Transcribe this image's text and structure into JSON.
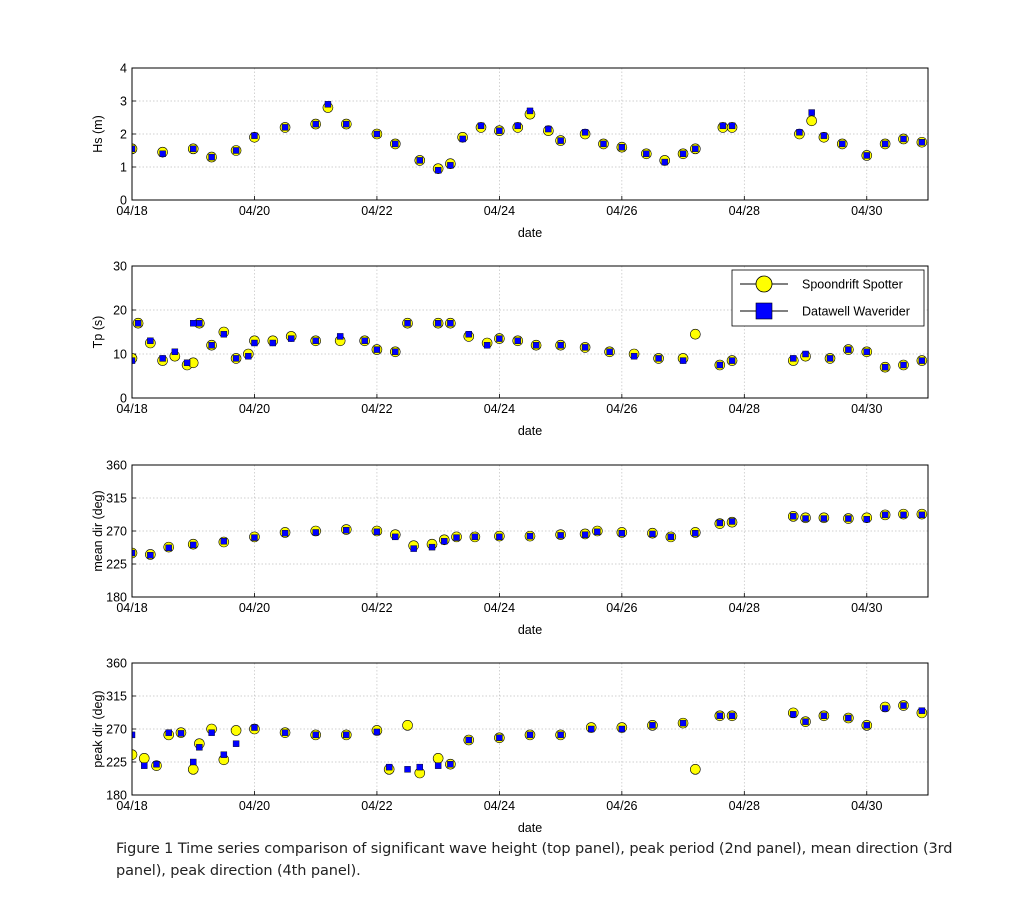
{
  "caption": "Figure 1 Time series comparison of significant wave height (top panel), peak period (2nd panel), mean direction (3rd panel), peak direction (4th panel).",
  "legend": {
    "location": "inside top-right of panel 2",
    "entries": [
      {
        "label": "Spoondrift Spotter",
        "marker": "circle",
        "color": "#ffff00",
        "edge": "#000000"
      },
      {
        "label": "Datawell Waverider",
        "marker": "square",
        "color": "#0000ff",
        "edge": "#000000"
      }
    ]
  },
  "colors": {
    "spotter": "#ffff00",
    "waverider": "#0000ff",
    "grid": "#c0c0c0",
    "axis": "#000000"
  },
  "chart_data": [
    {
      "type": "scatter",
      "title": "",
      "xlabel": "date",
      "ylabel": "Hs (m)",
      "xlim": [
        18,
        31
      ],
      "ylim": [
        0,
        4
      ],
      "xticks": [
        "04/18",
        "04/20",
        "04/22",
        "04/24",
        "04/26",
        "04/28",
        "04/30"
      ],
      "yticks": [
        "0",
        "1",
        "2",
        "3",
        "4"
      ],
      "grid": true,
      "x_unit": "day of April",
      "series": [
        {
          "name": "Spoondrift Spotter",
          "x": [
            18.0,
            18.5,
            19.0,
            19.3,
            19.7,
            20.0,
            20.5,
            21.0,
            21.2,
            21.5,
            22.0,
            22.3,
            22.7,
            23.0,
            23.2,
            23.4,
            23.7,
            24.0,
            24.3,
            24.5,
            24.8,
            25.0,
            25.4,
            25.7,
            26.0,
            26.4,
            26.7,
            27.0,
            27.2,
            27.65,
            27.8,
            28.9,
            29.1,
            29.3,
            29.6,
            30.0,
            30.3,
            30.6,
            30.9
          ],
          "y": [
            1.55,
            1.45,
            1.55,
            1.3,
            1.5,
            1.9,
            2.2,
            2.3,
            2.8,
            2.3,
            2.0,
            1.7,
            1.2,
            0.95,
            1.1,
            1.9,
            2.2,
            2.1,
            2.2,
            2.6,
            2.1,
            1.8,
            2.0,
            1.7,
            1.6,
            1.4,
            1.2,
            1.4,
            1.55,
            2.2,
            2.2,
            2.0,
            2.4,
            1.9,
            1.7,
            1.35,
            1.7,
            1.85,
            1.75
          ]
        },
        {
          "name": "Datawell Waverider",
          "x": [
            18.0,
            18.5,
            19.0,
            19.3,
            19.7,
            20.0,
            20.5,
            21.0,
            21.2,
            21.5,
            22.0,
            22.3,
            22.7,
            23.0,
            23.2,
            23.4,
            23.7,
            24.0,
            24.3,
            24.5,
            24.8,
            25.0,
            25.4,
            25.7,
            26.0,
            26.4,
            26.7,
            27.0,
            27.2,
            27.65,
            27.8,
            28.9,
            29.1,
            29.3,
            29.6,
            30.0,
            30.3,
            30.6,
            30.9
          ],
          "y": [
            1.55,
            1.4,
            1.55,
            1.3,
            1.5,
            1.95,
            2.2,
            2.3,
            2.9,
            2.3,
            2.0,
            1.7,
            1.2,
            0.9,
            1.05,
            1.85,
            2.25,
            2.1,
            2.25,
            2.7,
            2.15,
            1.8,
            2.05,
            1.7,
            1.6,
            1.4,
            1.15,
            1.4,
            1.55,
            2.25,
            2.25,
            2.05,
            2.65,
            1.95,
            1.7,
            1.35,
            1.7,
            1.85,
            1.75
          ]
        }
      ]
    },
    {
      "type": "scatter",
      "title": "",
      "xlabel": "date",
      "ylabel": "Tp (s)",
      "xlim": [
        18,
        31
      ],
      "ylim": [
        0,
        30
      ],
      "xticks": [
        "04/18",
        "04/20",
        "04/22",
        "04/24",
        "04/26",
        "04/28",
        "04/30"
      ],
      "yticks": [
        "0",
        "10",
        "20",
        "30"
      ],
      "grid": true,
      "x_unit": "day of April",
      "series": [
        {
          "name": "Spoondrift Spotter",
          "x": [
            18.0,
            18.1,
            18.3,
            18.5,
            18.7,
            18.9,
            19.0,
            19.1,
            19.3,
            19.5,
            19.7,
            19.9,
            20.0,
            20.3,
            20.6,
            21.0,
            21.4,
            21.8,
            22.0,
            22.3,
            22.5,
            23.0,
            23.2,
            23.5,
            23.8,
            24.0,
            24.3,
            24.6,
            25.0,
            25.4,
            25.8,
            26.2,
            26.6,
            27.0,
            27.2,
            27.6,
            27.8,
            28.8,
            29.0,
            29.4,
            29.7,
            30.0,
            30.3,
            30.6,
            30.9
          ],
          "y": [
            9,
            17,
            12.5,
            8.5,
            9.5,
            7.5,
            8,
            17,
            12,
            15,
            9,
            10,
            13,
            13,
            14,
            13,
            13,
            13,
            11,
            10.5,
            17,
            17,
            17,
            14,
            12.5,
            13.5,
            13,
            12,
            12,
            11.5,
            10.5,
            10,
            9,
            9,
            14.5,
            7.5,
            8.5,
            8.5,
            9.5,
            9,
            11,
            10.5,
            7,
            7.5,
            8.5
          ]
        },
        {
          "name": "Datawell Waverider",
          "x": [
            18.0,
            18.1,
            18.3,
            18.5,
            18.7,
            18.9,
            19.0,
            19.1,
            19.3,
            19.5,
            19.7,
            19.9,
            20.0,
            20.3,
            20.6,
            21.0,
            21.4,
            21.8,
            22.0,
            22.3,
            22.5,
            23.0,
            23.2,
            23.5,
            23.8,
            24.0,
            24.3,
            24.6,
            25.0,
            25.4,
            25.8,
            26.2,
            26.6,
            27.0,
            27.6,
            27.8,
            28.8,
            29.0,
            29.4,
            29.7,
            30.0,
            30.3,
            30.6,
            30.9
          ],
          "y": [
            8.5,
            17,
            13,
            9,
            10.5,
            8,
            17,
            17,
            12,
            14.5,
            9,
            9.5,
            12.5,
            12.5,
            13.5,
            13,
            14,
            13,
            11,
            10.5,
            17,
            17,
            17,
            14.5,
            12,
            13.5,
            13,
            12,
            12,
            11.5,
            10.5,
            9.5,
            9,
            8.5,
            7.5,
            8.5,
            9,
            10,
            9,
            11,
            10.5,
            7,
            7.5,
            8.5
          ]
        }
      ]
    },
    {
      "type": "scatter",
      "title": "",
      "xlabel": "date",
      "ylabel": "mean dir (deg)",
      "xlim": [
        18,
        31
      ],
      "ylim": [
        180,
        360
      ],
      "xticks": [
        "04/18",
        "04/20",
        "04/22",
        "04/24",
        "04/26",
        "04/28",
        "04/30"
      ],
      "yticks": [
        "180",
        "225",
        "270",
        "315",
        "360"
      ],
      "grid": true,
      "x_unit": "day of April",
      "series": [
        {
          "name": "Spoondrift Spotter",
          "x": [
            18.0,
            18.3,
            18.6,
            19.0,
            19.5,
            20.0,
            20.5,
            21.0,
            21.5,
            22.0,
            22.3,
            22.6,
            22.9,
            23.1,
            23.3,
            23.6,
            24.0,
            24.5,
            25.0,
            25.4,
            25.6,
            26.0,
            26.5,
            26.8,
            27.2,
            27.6,
            27.8,
            28.8,
            29.0,
            29.3,
            29.7,
            30.0,
            30.3,
            30.6,
            30.9
          ],
          "y": [
            240,
            238,
            248,
            252,
            255,
            262,
            268,
            270,
            272,
            270,
            265,
            250,
            252,
            258,
            262,
            262,
            263,
            263,
            265,
            266,
            270,
            268,
            267,
            262,
            268,
            280,
            282,
            290,
            288,
            288,
            287,
            288,
            292,
            293,
            293
          ]
        },
        {
          "name": "Datawell Waverider",
          "x": [
            18.0,
            18.3,
            18.6,
            19.0,
            19.5,
            20.0,
            20.5,
            21.0,
            21.5,
            22.0,
            22.3,
            22.6,
            22.9,
            23.1,
            23.3,
            23.6,
            24.0,
            24.5,
            25.0,
            25.4,
            25.6,
            26.0,
            26.5,
            26.8,
            27.2,
            27.6,
            27.8,
            28.8,
            29.0,
            29.3,
            29.7,
            30.0,
            30.3,
            30.6,
            30.9
          ],
          "y": [
            240,
            237,
            247,
            251,
            256,
            261,
            267,
            268,
            271,
            269,
            262,
            246,
            248,
            256,
            261,
            262,
            262,
            263,
            264,
            265,
            269,
            267,
            266,
            262,
            267,
            281,
            283,
            290,
            287,
            287,
            287,
            286,
            292,
            292,
            292
          ]
        }
      ]
    },
    {
      "type": "scatter",
      "title": "",
      "xlabel": "date",
      "ylabel": "peak dir (deg)",
      "xlim": [
        18,
        31
      ],
      "ylim": [
        180,
        360
      ],
      "xticks": [
        "04/18",
        "04/20",
        "04/22",
        "04/24",
        "04/26",
        "04/28",
        "04/30"
      ],
      "yticks": [
        "180",
        "225",
        "270",
        "315",
        "360"
      ],
      "grid": true,
      "x_unit": "day of April",
      "series": [
        {
          "name": "Spoondrift Spotter",
          "x": [
            18.0,
            18.2,
            18.4,
            18.6,
            18.8,
            19.0,
            19.1,
            19.3,
            19.5,
            19.7,
            20.0,
            20.5,
            21.0,
            21.5,
            22.0,
            22.2,
            22.5,
            22.7,
            23.0,
            23.2,
            23.5,
            24.0,
            24.5,
            25.0,
            25.5,
            26.0,
            26.5,
            27.0,
            27.2,
            27.6,
            27.8,
            28.8,
            29.0,
            29.3,
            29.7,
            30.0,
            30.3,
            30.6,
            30.9
          ],
          "y": [
            235,
            230,
            220,
            262,
            265,
            215,
            250,
            270,
            228,
            268,
            270,
            265,
            262,
            262,
            268,
            215,
            275,
            210,
            230,
            222,
            255,
            258,
            262,
            262,
            272,
            272,
            275,
            278,
            215,
            288,
            288,
            292,
            280,
            288,
            285,
            275,
            300,
            302,
            292
          ]
        },
        {
          "name": "Datawell Waverider",
          "x": [
            18.0,
            18.2,
            18.4,
            18.6,
            18.8,
            19.0,
            19.1,
            19.3,
            19.5,
            19.7,
            20.0,
            20.5,
            21.0,
            21.5,
            22.0,
            22.2,
            22.5,
            22.7,
            23.0,
            23.2,
            23.5,
            24.0,
            24.5,
            25.0,
            25.5,
            26.0,
            26.5,
            27.0,
            27.6,
            27.8,
            28.8,
            29.0,
            29.3,
            29.7,
            30.0,
            30.3,
            30.6,
            30.9
          ],
          "y": [
            262,
            220,
            222,
            265,
            264,
            225,
            245,
            265,
            235,
            250,
            272,
            265,
            262,
            262,
            266,
            218,
            215,
            218,
            220,
            222,
            255,
            258,
            262,
            262,
            270,
            270,
            275,
            278,
            288,
            288,
            290,
            280,
            288,
            285,
            275,
            298,
            302,
            295
          ]
        }
      ]
    }
  ]
}
